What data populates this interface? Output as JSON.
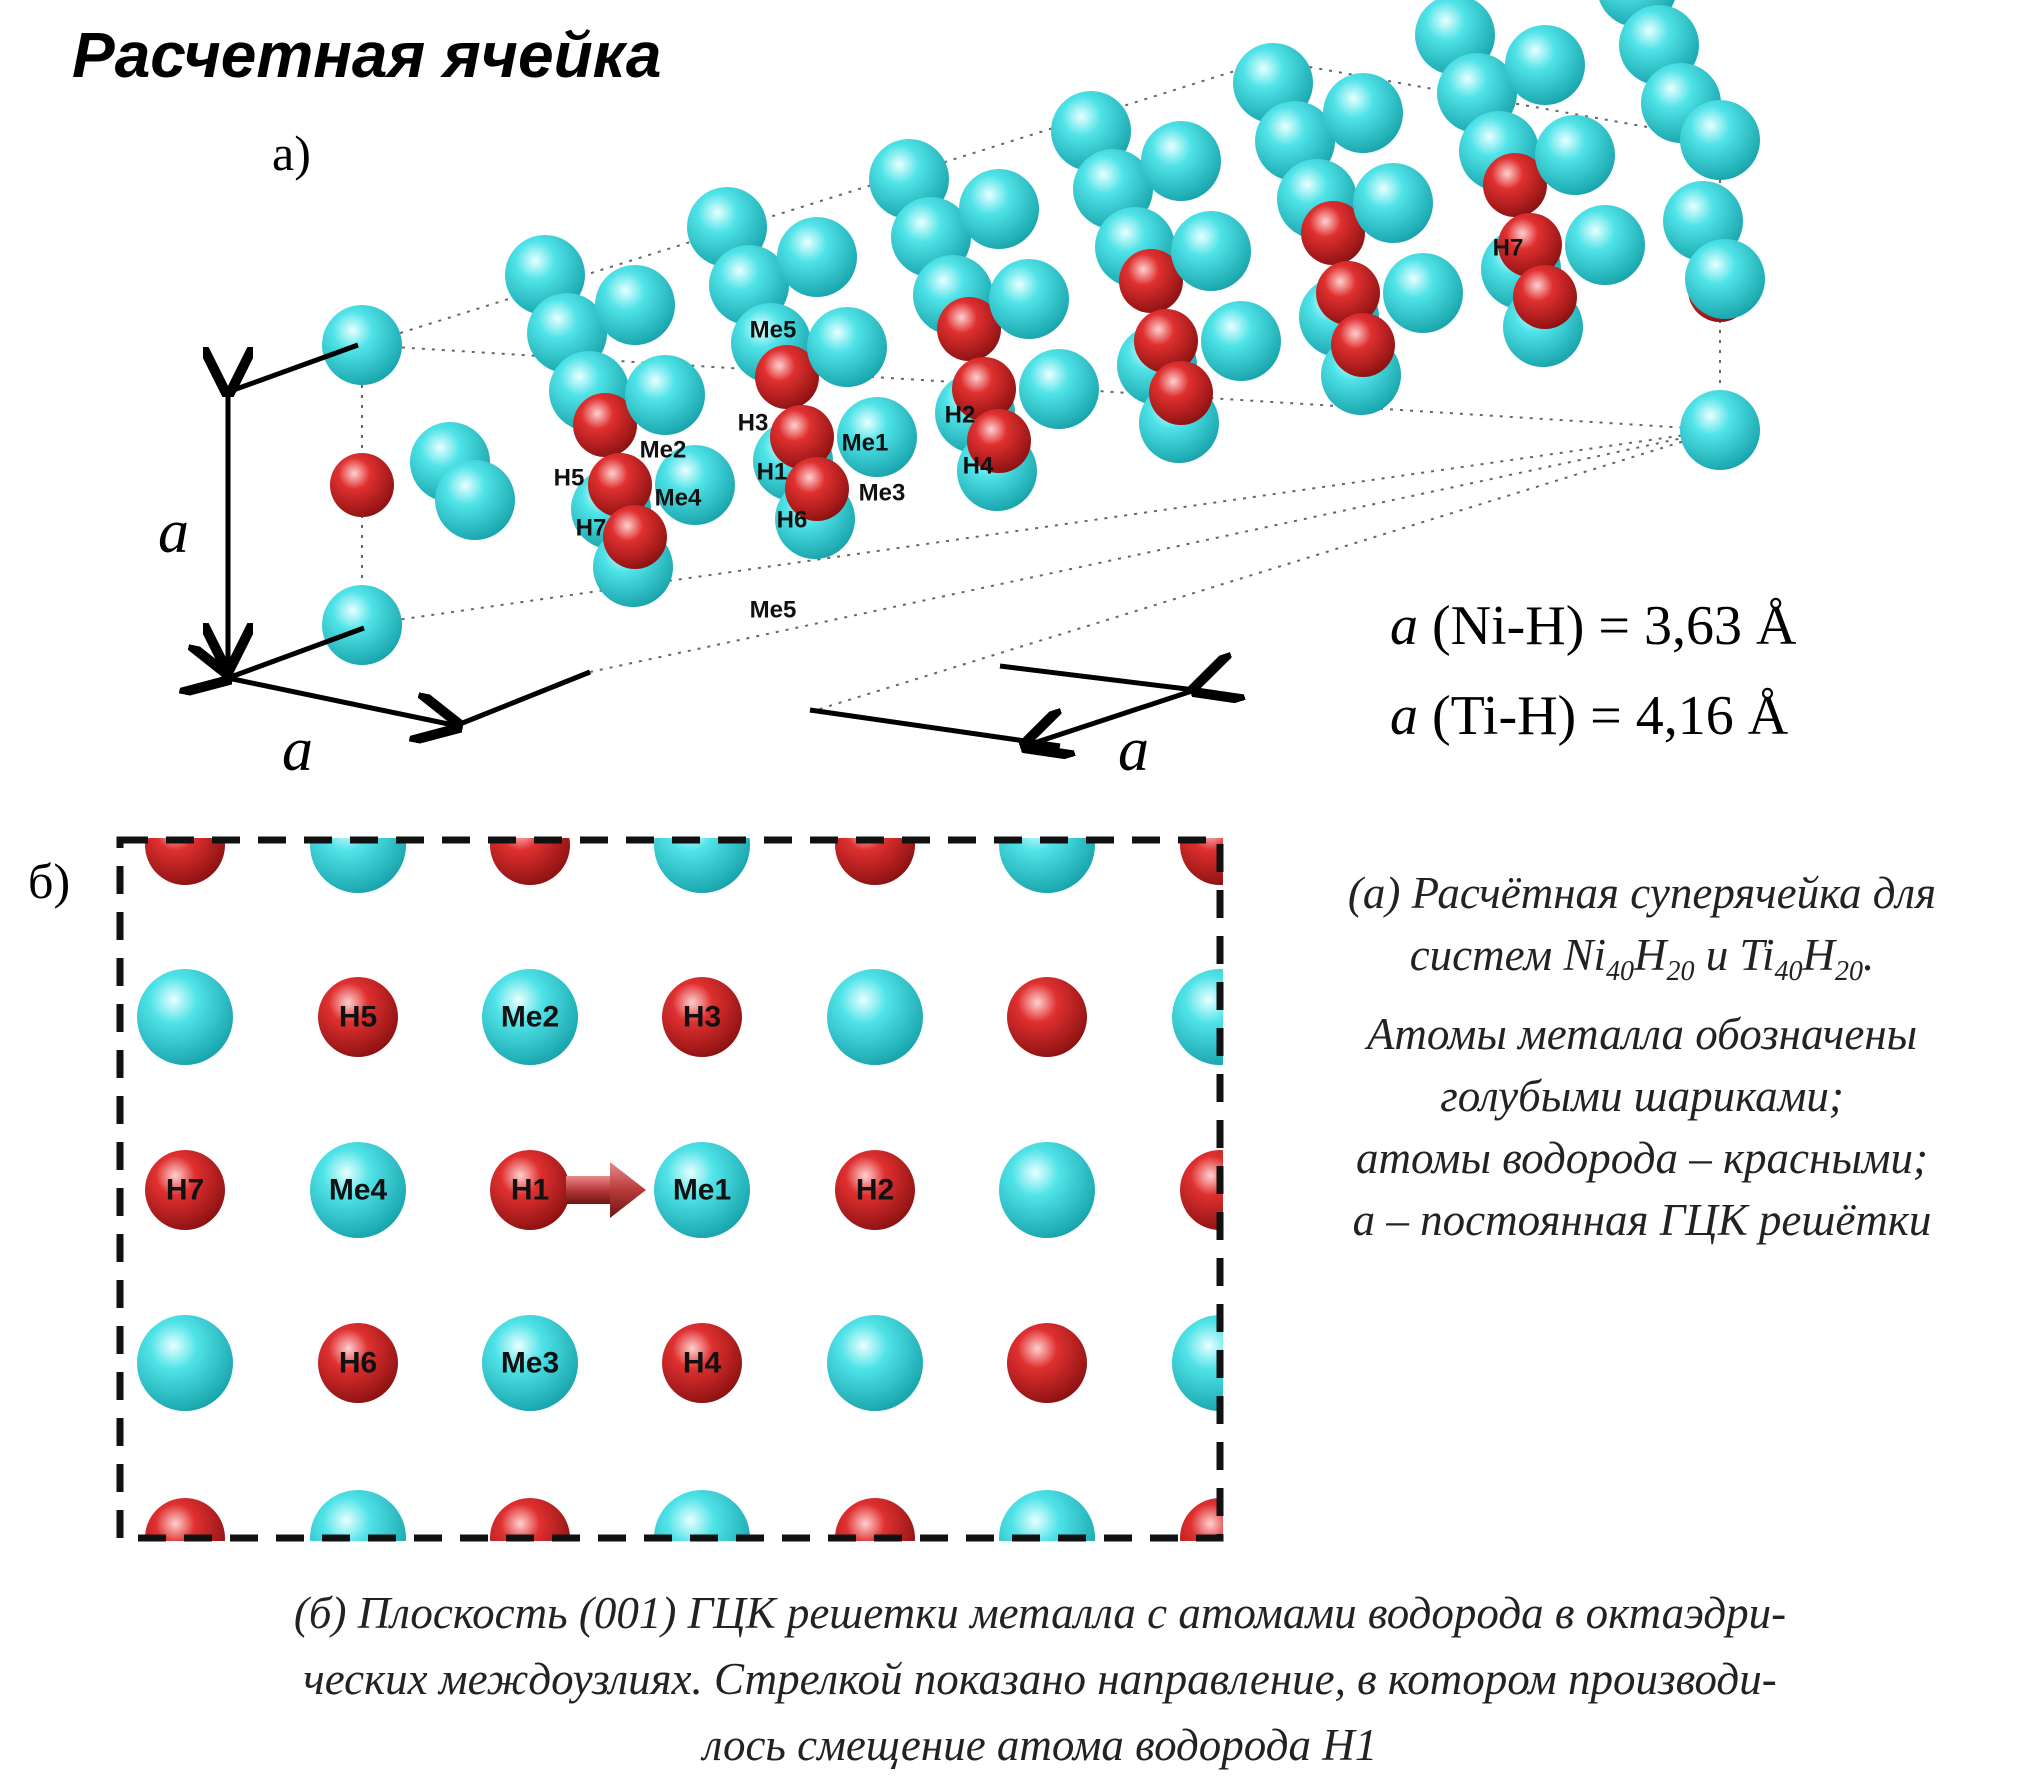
{
  "title": "Расчетная ячейка",
  "panel_a": {
    "label": "а)",
    "axis_label": "a",
    "atom_labels": [
      "Me5",
      "H3",
      "Me1",
      "H2",
      "H4",
      "Me2",
      "H5",
      "Me4",
      "H1",
      "Me3",
      "H7",
      "H6",
      "Me5",
      "H7"
    ],
    "constants": [
      {
        "symbol": "a",
        "text": " (Ni-H) = 3,63 Å"
      },
      {
        "symbol": "a",
        "text": " (Ti-H) = 4,16 Å"
      }
    ]
  },
  "panel_b": {
    "label": "б)",
    "rows": [
      [
        "",
        "H5",
        "Me2",
        "H3",
        "",
        "",
        ""
      ],
      [
        "H7",
        "Me4",
        "H1",
        "Me1",
        "H2",
        "",
        ""
      ],
      [
        "",
        "H6",
        "Me3",
        "H4",
        "",
        "",
        ""
      ]
    ],
    "arrow_from": "H1",
    "arrow_to": "Me1"
  },
  "caption_a": {
    "line1": "(а) Расчётная суперячейка для",
    "line2_prefix": "систем Ni",
    "sub1": "40",
    "mid1": "H",
    "sub2": "20",
    "mid2": " и Ti",
    "sub3": "40",
    "mid3": "H",
    "sub4": "20",
    "line2_suffix": ".",
    "line3": "Атомы металла обозначены",
    "line4": "голубыми шариками;",
    "line5": "атомы водорода – красными;",
    "line6": "a – постоянная ГЦК решётки"
  },
  "caption_b": {
    "line1": "(б) Плоскость (001) ГЦК решетки металла с атомами водорода в октаэдри-",
    "line2": "ческих междоузлиях. Стрелкой показано направление, в котором производи-",
    "line3": "лось смещение атома водорода H1"
  },
  "colors": {
    "metal": "#35d6dc",
    "hydrogen": "#d42a2a"
  }
}
